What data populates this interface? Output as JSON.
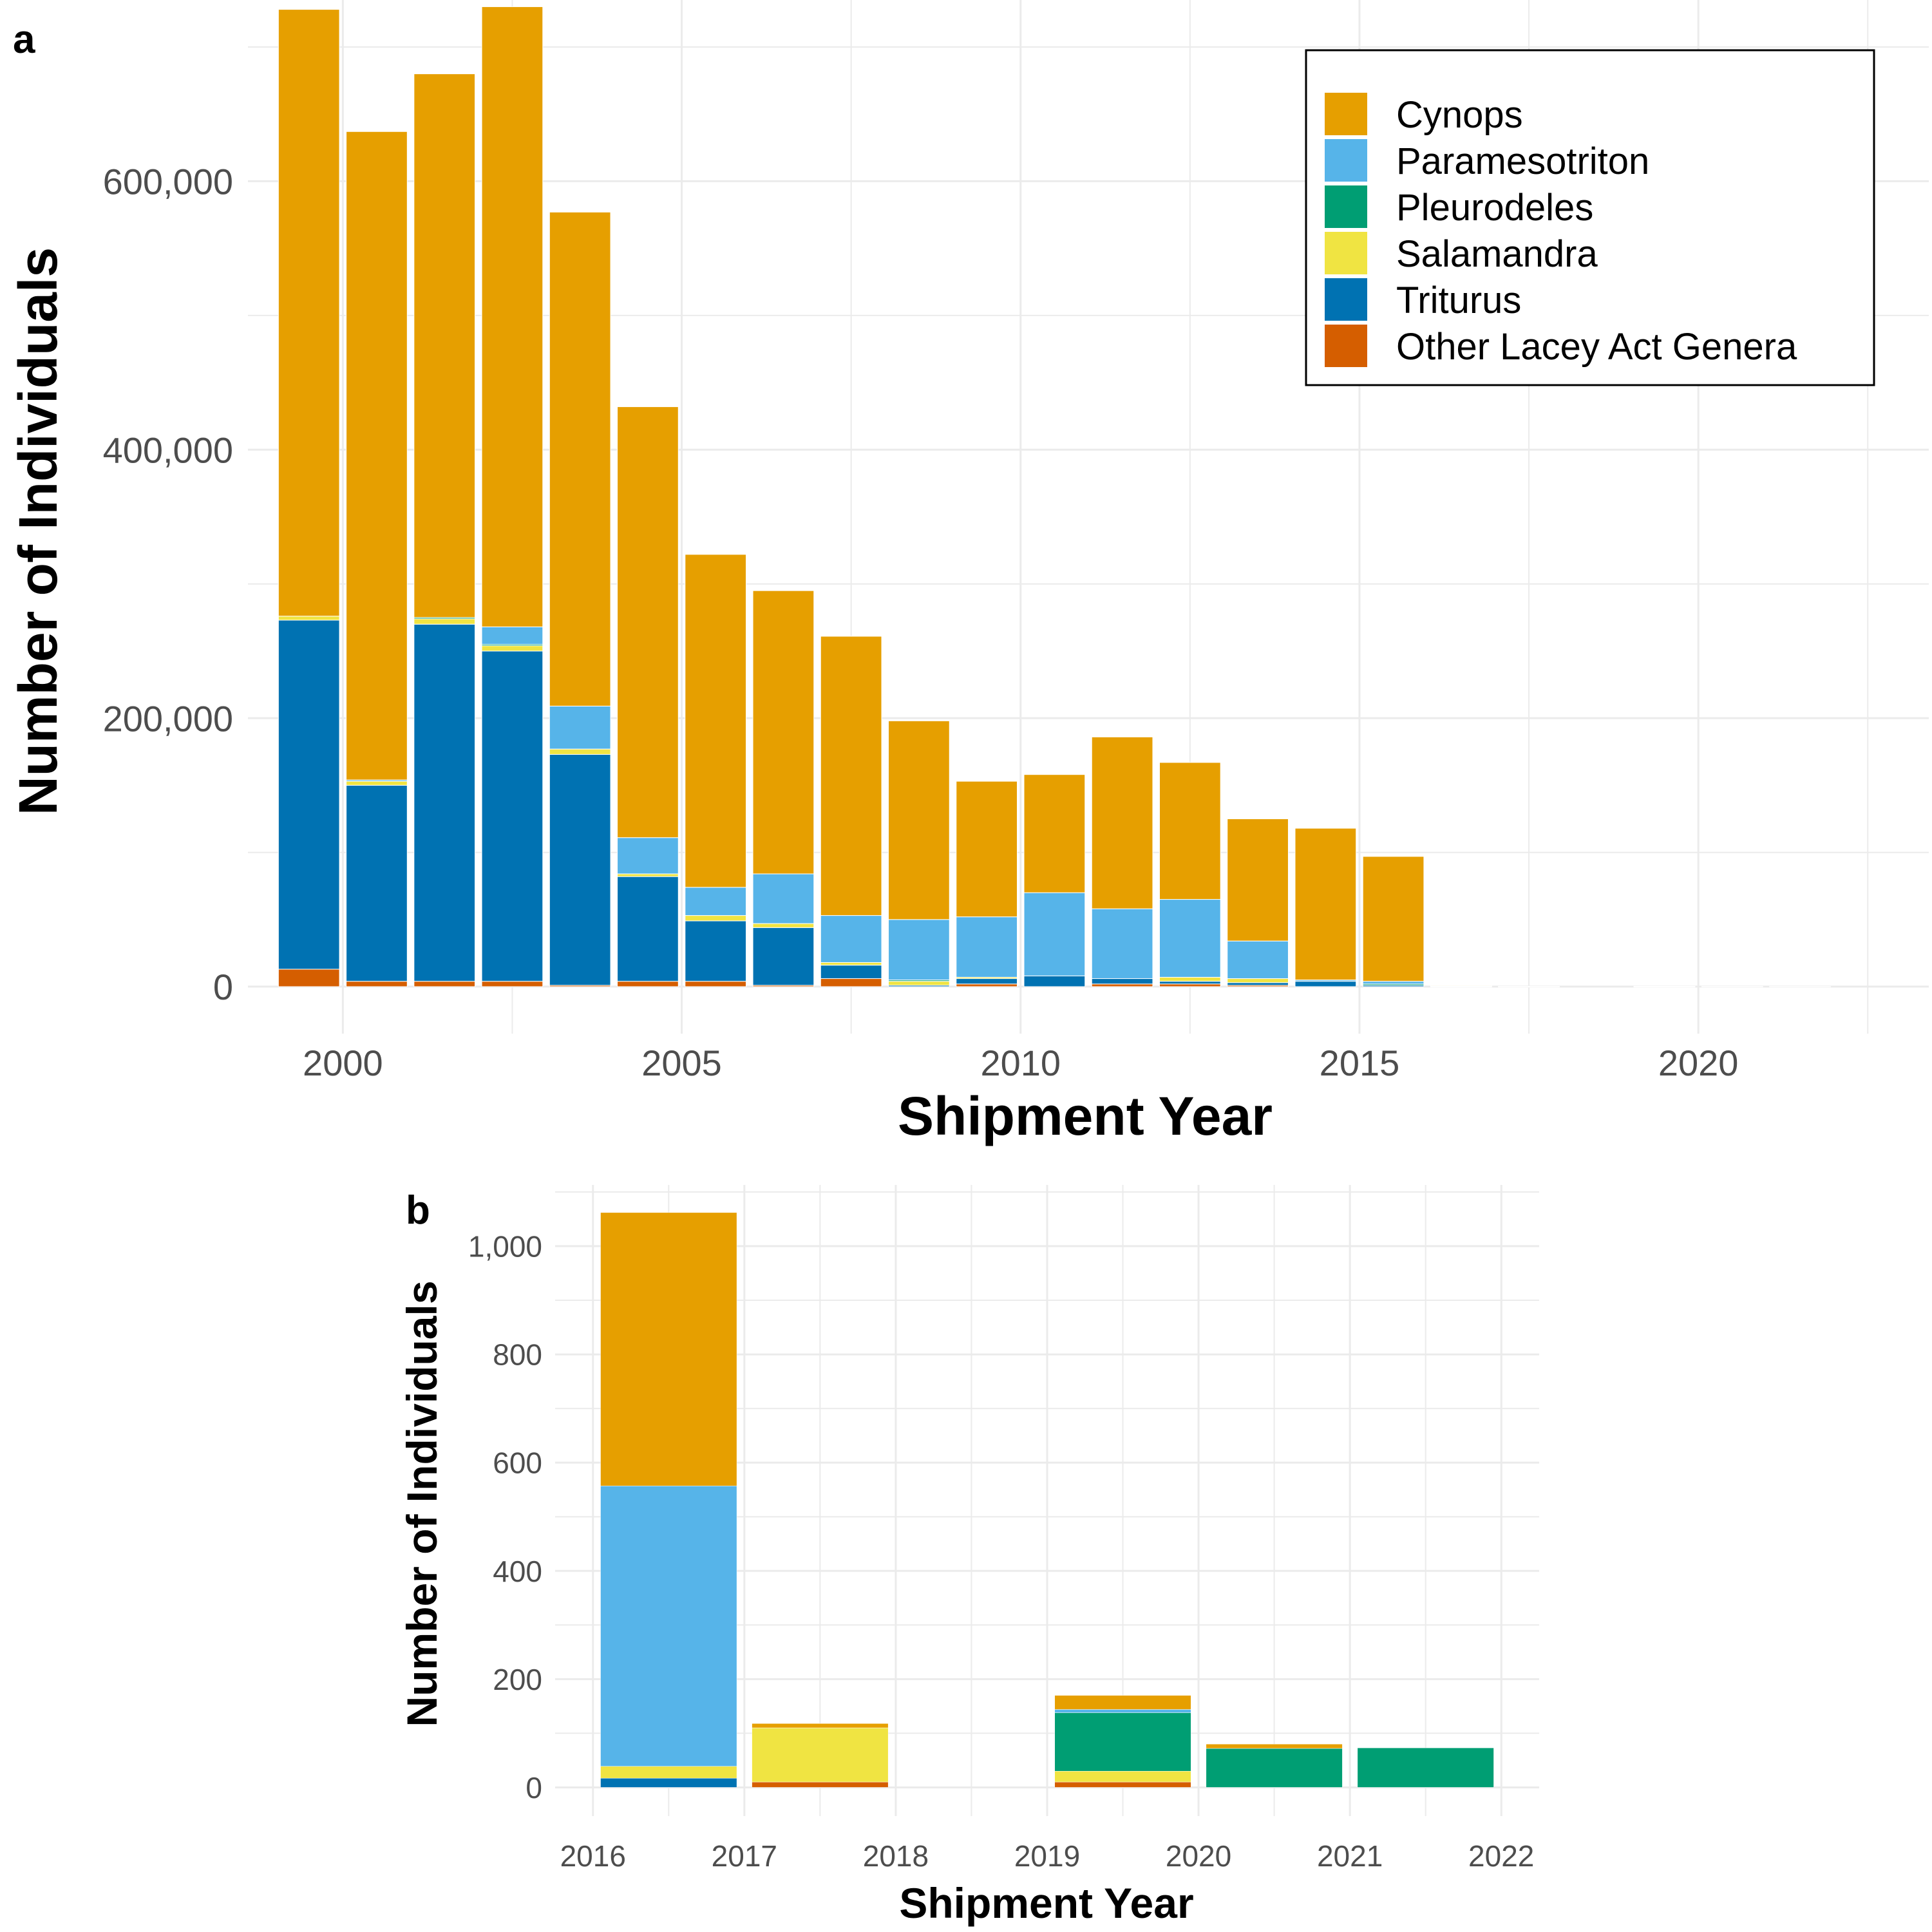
{
  "colors": {
    "Cynops": "#E69F00",
    "Paramesotriton": "#56B4E9",
    "Pleurodeles": "#009E73",
    "Salamandra": "#F0E442",
    "Triturus": "#0072B2",
    "Other": "#D55E00",
    "grid": "#EBEBEB",
    "tick_text": "#4D4D4D"
  },
  "legend": {
    "entries": [
      {
        "key": "Cynops",
        "label": "Cynops"
      },
      {
        "key": "Paramesotriton",
        "label": "Paramesotriton"
      },
      {
        "key": "Pleurodeles",
        "label": "Pleurodeles"
      },
      {
        "key": "Salamandra",
        "label": "Salamandra"
      },
      {
        "key": "Triturus",
        "label": "Triturus"
      },
      {
        "key": "Other",
        "label": "Other Lacey Act Genera"
      }
    ],
    "placement": "top-right"
  },
  "chart_data": [
    {
      "panel_label": "a",
      "type": "bar",
      "stacked": true,
      "xlabel": "Shipment Year",
      "ylabel": "Number of Individuals",
      "xlim": [
        1998.6,
        2023.4
      ],
      "ylim": [
        -35000,
        735000
      ],
      "xticks": [
        2000,
        2005,
        2010,
        2015,
        2020
      ],
      "yticks": [
        0,
        200000,
        400000,
        600000
      ],
      "ytick_labels": [
        "0",
        "200,000",
        "400,000",
        "600,000"
      ],
      "stack_order": [
        "Other",
        "Triturus",
        "Salamandra",
        "Pleurodeles",
        "Paramesotriton",
        "Cynops"
      ],
      "bars": [
        {
          "x": 1999.5,
          "values": {
            "Other": 13000,
            "Triturus": 260000,
            "Salamandra": 3000,
            "Pleurodeles": 0,
            "Paramesotriton": 0,
            "Cynops": 452000
          }
        },
        {
          "x": 2000.5,
          "values": {
            "Other": 4000,
            "Triturus": 146000,
            "Salamandra": 3000,
            "Pleurodeles": 0,
            "Paramesotriton": 1000,
            "Cynops": 483000
          }
        },
        {
          "x": 2001.5,
          "values": {
            "Other": 4000,
            "Triturus": 266000,
            "Salamandra": 4000,
            "Pleurodeles": 1000,
            "Paramesotriton": 0,
            "Cynops": 405000
          }
        },
        {
          "x": 2002.5,
          "values": {
            "Other": 4000,
            "Triturus": 246000,
            "Salamandra": 4000,
            "Pleurodeles": 1000,
            "Paramesotriton": 13000,
            "Cynops": 462000
          }
        },
        {
          "x": 2003.5,
          "values": {
            "Other": 1000,
            "Triturus": 172000,
            "Salamandra": 4000,
            "Pleurodeles": 0,
            "Paramesotriton": 32000,
            "Cynops": 368000
          }
        },
        {
          "x": 2004.5,
          "values": {
            "Other": 4000,
            "Triturus": 78000,
            "Salamandra": 2000,
            "Pleurodeles": 0,
            "Paramesotriton": 27000,
            "Cynops": 321000
          }
        },
        {
          "x": 2005.5,
          "values": {
            "Other": 4000,
            "Triturus": 45000,
            "Salamandra": 4000,
            "Pleurodeles": 0,
            "Paramesotriton": 21000,
            "Cynops": 248000
          }
        },
        {
          "x": 2006.5,
          "values": {
            "Other": 1000,
            "Triturus": 43000,
            "Salamandra": 3000,
            "Pleurodeles": 0,
            "Paramesotriton": 37000,
            "Cynops": 211000
          }
        },
        {
          "x": 2007.5,
          "values": {
            "Other": 6000,
            "Triturus": 10000,
            "Salamandra": 2000,
            "Pleurodeles": 0,
            "Paramesotriton": 35000,
            "Cynops": 208000
          }
        },
        {
          "x": 2008.5,
          "values": {
            "Other": 0,
            "Triturus": 1000,
            "Salamandra": 3000,
            "Pleurodeles": 1000,
            "Paramesotriton": 45000,
            "Cynops": 148000
          }
        },
        {
          "x": 2009.5,
          "values": {
            "Other": 2000,
            "Triturus": 4000,
            "Salamandra": 1000,
            "Pleurodeles": 0,
            "Paramesotriton": 45000,
            "Cynops": 101000
          }
        },
        {
          "x": 2010.5,
          "values": {
            "Other": 0,
            "Triturus": 8000,
            "Salamandra": 0,
            "Pleurodeles": 0,
            "Paramesotriton": 62000,
            "Cynops": 88000
          }
        },
        {
          "x": 2011.5,
          "values": {
            "Other": 2000,
            "Triturus": 4000,
            "Salamandra": 0,
            "Pleurodeles": 0,
            "Paramesotriton": 52000,
            "Cynops": 128000
          }
        },
        {
          "x": 2012.5,
          "values": {
            "Other": 2000,
            "Triturus": 2000,
            "Salamandra": 3000,
            "Pleurodeles": 0,
            "Paramesotriton": 58000,
            "Cynops": 102000
          }
        },
        {
          "x": 2013.5,
          "values": {
            "Other": 1000,
            "Triturus": 2000,
            "Salamandra": 3000,
            "Pleurodeles": 0,
            "Paramesotriton": 28000,
            "Cynops": 91000
          }
        },
        {
          "x": 2014.5,
          "values": {
            "Other": 0,
            "Triturus": 4000,
            "Salamandra": 0,
            "Pleurodeles": 0,
            "Paramesotriton": 1000,
            "Cynops": 113000
          }
        },
        {
          "x": 2015.5,
          "values": {
            "Other": 0,
            "Triturus": 1000,
            "Salamandra": 0,
            "Pleurodeles": 1000,
            "Paramesotriton": 2000,
            "Cynops": 93000
          }
        },
        {
          "x": 2016.5,
          "values": {
            "Other": 0,
            "Triturus": 20,
            "Salamandra": 20,
            "Pleurodeles": 0,
            "Paramesotriton": 520,
            "Cynops": 500
          }
        },
        {
          "x": 2017.5,
          "values": {
            "Other": 10,
            "Triturus": 0,
            "Salamandra": 100,
            "Pleurodeles": 0,
            "Paramesotriton": 0,
            "Cynops": 8
          }
        },
        {
          "x": 2019.5,
          "values": {
            "Other": 10,
            "Triturus": 0,
            "Salamandra": 20,
            "Pleurodeles": 108,
            "Paramesotriton": 6,
            "Cynops": 26
          }
        },
        {
          "x": 2020.5,
          "values": {
            "Other": 0,
            "Triturus": 0,
            "Salamandra": 0,
            "Pleurodeles": 72,
            "Paramesotriton": 0,
            "Cynops": 8
          }
        },
        {
          "x": 2021.5,
          "values": {
            "Other": 0,
            "Triturus": 0,
            "Salamandra": 0,
            "Pleurodeles": 73,
            "Paramesotriton": 0,
            "Cynops": 0
          }
        }
      ]
    },
    {
      "panel_label": "b",
      "type": "bar",
      "stacked": true,
      "xlabel": "Shipment Year",
      "ylabel": "Number of Individuals",
      "xlim": [
        2015.75,
        2022.25
      ],
      "ylim": [
        -53,
        1113
      ],
      "xticks": [
        2016,
        2017,
        2018,
        2019,
        2020,
        2021,
        2022
      ],
      "yticks": [
        0,
        200,
        400,
        600,
        800,
        1000
      ],
      "ytick_labels": [
        "0",
        "200",
        "400",
        "600",
        "800",
        "1,000"
      ],
      "stack_order": [
        "Other",
        "Triturus",
        "Salamandra",
        "Pleurodeles",
        "Paramesotriton",
        "Cynops"
      ],
      "bars": [
        {
          "x": 2016.5,
          "values": {
            "Other": 0,
            "Triturus": 17,
            "Salamandra": 22,
            "Pleurodeles": 0,
            "Paramesotriton": 518,
            "Cynops": 505
          }
        },
        {
          "x": 2017.5,
          "values": {
            "Other": 10,
            "Triturus": 0,
            "Salamandra": 100,
            "Pleurodeles": 0,
            "Paramesotriton": 0,
            "Cynops": 8
          }
        },
        {
          "x": 2019.5,
          "values": {
            "Other": 10,
            "Triturus": 0,
            "Salamandra": 20,
            "Pleurodeles": 108,
            "Paramesotriton": 6,
            "Cynops": 26
          }
        },
        {
          "x": 2020.5,
          "values": {
            "Other": 0,
            "Triturus": 0,
            "Salamandra": 0,
            "Pleurodeles": 72,
            "Paramesotriton": 0,
            "Cynops": 8
          }
        },
        {
          "x": 2021.5,
          "values": {
            "Other": 0,
            "Triturus": 0,
            "Salamandra": 0,
            "Pleurodeles": 73,
            "Paramesotriton": 0,
            "Cynops": 0
          }
        }
      ]
    }
  ]
}
